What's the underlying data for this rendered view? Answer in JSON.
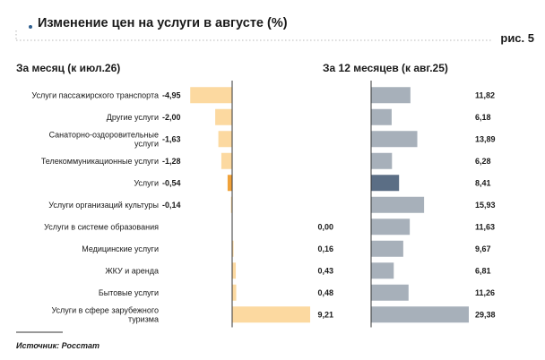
{
  "header": {
    "title": "Изменение цен на услуги в августе (%)",
    "figure_label": "рис. 5"
  },
  "source": "Источник: Росстат",
  "colors": {
    "monthly_positive": "#fcd9a0",
    "monthly_negative": "#fcd9a0",
    "monthly_highlight": "#f0a23a",
    "annual_bar": "#a7b0ba",
    "annual_highlight": "#5b6e85",
    "axis": "#333333",
    "title_dots": "#b8b8b8",
    "title_bullet": "#2f5f8f"
  },
  "chart_data": [
    {
      "type": "bar",
      "orientation": "horizontal",
      "title": "За месяц (к июл.26)",
      "categories": [
        [
          "Услуги пассажирского транспорта"
        ],
        [
          "Другие услуги"
        ],
        [
          "Санаторно-оздоровительные",
          "услуги"
        ],
        [
          "Телекоммуникационные услуги"
        ],
        [
          "Услуги"
        ],
        [
          "Услуги организаций культуры"
        ],
        [
          "Услуги в системе образования"
        ],
        [
          "Медицинские услуги"
        ],
        [
          "ЖКУ и аренда"
        ],
        [
          "Бытовые услуги"
        ],
        [
          "Услуги в сфере зарубежного",
          "туризма"
        ]
      ],
      "values": [
        -4.95,
        -2.0,
        -1.63,
        -1.28,
        -0.54,
        -0.14,
        0.0,
        0.16,
        0.43,
        0.48,
        9.21
      ],
      "labels": [
        "-4,95",
        "-2,00",
        "-1,63",
        "-1,28",
        "-0,54",
        "-0,14",
        "0,00",
        "0,16",
        "0,43",
        "0,48",
        "9,21"
      ],
      "highlight_index": 4,
      "xlim": [
        -5.3,
        9.21
      ],
      "grid": false,
      "legend": "none"
    },
    {
      "type": "bar",
      "orientation": "horizontal",
      "title": "За 12 месяцев (к авг.25)",
      "values": [
        11.82,
        6.18,
        13.89,
        6.28,
        8.41,
        15.93,
        11.63,
        9.67,
        6.81,
        11.26,
        29.38
      ],
      "labels": [
        "11,82",
        "6,18",
        "13,89",
        "6,28",
        "8,41",
        "15,93",
        "11,63",
        "9,67",
        "6,81",
        "11,26",
        "29,38"
      ],
      "highlight_index": 4,
      "xlim": [
        0,
        29.38
      ],
      "grid": false,
      "legend": "none"
    }
  ]
}
